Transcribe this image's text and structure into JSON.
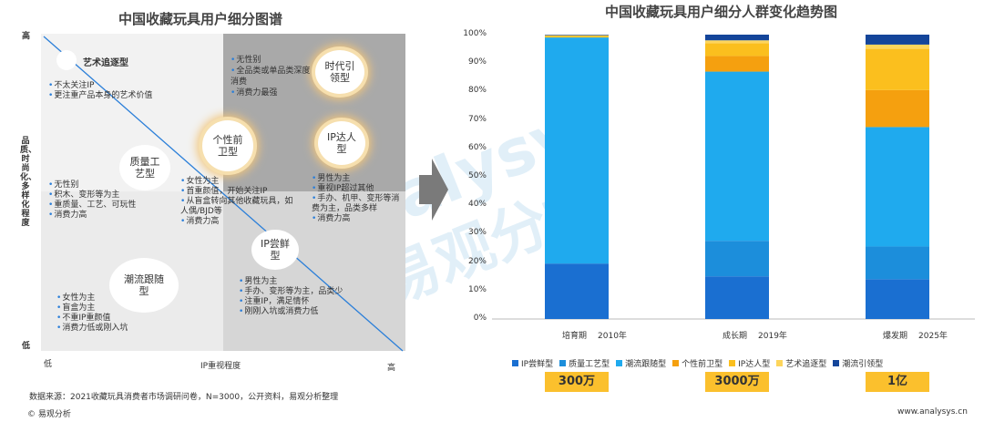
{
  "left": {
    "title": "中国收藏玩具用户细分图谱",
    "y_axis": {
      "high": "高",
      "low": "低",
      "label": "品质、时尚化、多样化程度"
    },
    "x_axis": {
      "low": "低",
      "label": "IP重视程度",
      "high": "高"
    },
    "segments": {
      "art": {
        "name": "艺术追逐型",
        "bullets": [
          "不太关注IP",
          "更注重产品本身的艺术价值"
        ]
      },
      "tastemaker": {
        "name": "时代引领型",
        "bullets": [
          "无性别",
          "全品类或单品类深度消费",
          "消费力最强"
        ]
      },
      "quality": {
        "name": "质量工艺型",
        "bullets": [
          "无性别",
          "积木、变形等为主",
          "重质量、工艺、可玩性",
          "消费力高"
        ]
      },
      "avantgarde": {
        "name": "个性前卫型",
        "bullets": [
          "女性为主",
          "首重颜值，开始关注IP",
          "从盲盒转向其他收藏玩具，如人偶/BJD等",
          "消费力高"
        ]
      },
      "ip_master": {
        "name": "IP达人型",
        "bullets": [
          "男性为主",
          "重视IP超过其他",
          "手办、机甲、变形等消费为主，品类多样",
          "消费力高"
        ]
      },
      "trend": {
        "name": "潮流跟随型",
        "bullets": [
          "女性为主",
          "盲盒为主",
          "不重IP重颜值",
          "消费力低或刚入坑"
        ]
      },
      "ip_taster": {
        "name": "IP尝鲜型",
        "bullets": [
          "男性为主",
          "手办、变形等为主，品类少",
          "注重IP，满足情怀",
          "刚刚入坑或消费力低"
        ]
      }
    }
  },
  "right": {
    "title": "中国收藏玩具用户细分人群变化趋势图",
    "legend_colors": {
      "IP尝鲜型": "#1a6fd1",
      "质量工艺型": "#1c8edb",
      "潮流跟随型": "#1faaee",
      "个性前卫型": "#f5a00f",
      "IP达人型": "#fbbf1e",
      "艺术追逐型": "#fdd55c",
      "潮流引领型": "#14459a"
    },
    "totals": [
      "300万",
      "3000万",
      "1亿"
    ]
  },
  "chart_data": {
    "type": "bar",
    "stacked": true,
    "categories": [
      "培育期 2010年",
      "成长期 2019年",
      "爆发期 2025年"
    ],
    "category_stage": [
      "培育期",
      "成长期",
      "爆发期"
    ],
    "category_year": [
      "2010年",
      "2019年",
      "2025年"
    ],
    "ylim": [
      0,
      100
    ],
    "yticks": [
      "0%",
      "10%",
      "20%",
      "30%",
      "40%",
      "50%",
      "60%",
      "70%",
      "80%",
      "90%",
      "100%"
    ],
    "series": [
      {
        "name": "IP尝鲜型",
        "values": [
          19.5,
          15,
          14
        ]
      },
      {
        "name": "质量工艺型",
        "values": [
          0,
          12.5,
          11.5
        ]
      },
      {
        "name": "潮流跟随型",
        "values": [
          79.5,
          59.5,
          42
        ]
      },
      {
        "name": "个性前卫型",
        "values": [
          0,
          5.5,
          13
        ]
      },
      {
        "name": "IP达人型",
        "values": [
          0.5,
          4.5,
          14.5
        ]
      },
      {
        "name": "艺术追逐型",
        "values": [
          0.3,
          1,
          1.5
        ]
      },
      {
        "name": "潮流引领型",
        "values": [
          0.2,
          2,
          3.5
        ]
      }
    ]
  },
  "footer": {
    "source": "数据来源：2021收藏玩具消费者市场调研问卷，N=3000，公开资料，易观分析整理",
    "copyright": "© 易观分析",
    "website": "www.analysys.cn"
  },
  "watermark": {
    "brand": "analysys",
    "cn": "易观分析"
  }
}
